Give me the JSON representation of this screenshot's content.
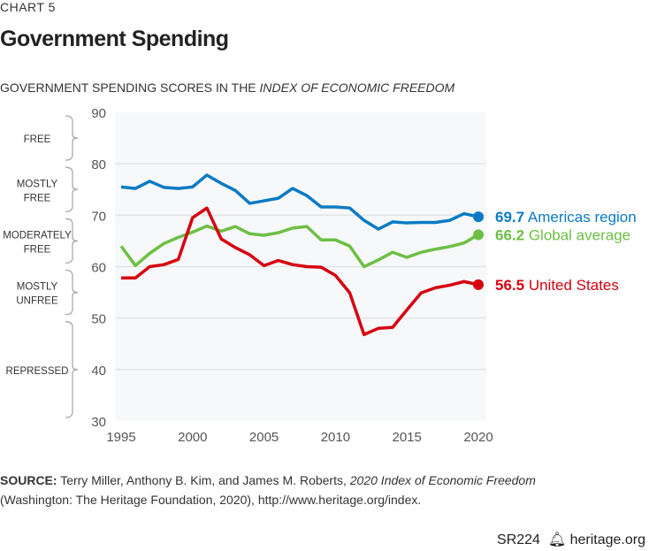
{
  "header": {
    "label": "CHART 5",
    "title": "Government Spending",
    "subtitle_prefix": "GOVERNMENT SPENDING SCORES IN THE ",
    "subtitle_italic": "INDEX OF ECONOMIC FREEDOM"
  },
  "source": {
    "label": "SOURCE:",
    "text1": " Terry Miller, Anthony B. Kim, and James M. Roberts, ",
    "italic": "2020 Index of Economic Freedom",
    "text2": "(Washington: The Heritage Foundation, 2020), http://www.heritage.org/index."
  },
  "footer": {
    "code": "SR224",
    "icon": "bell-icon",
    "site": "heritage.org"
  },
  "chart_data": {
    "type": "line",
    "title": "Government Spending",
    "xlabel": "",
    "ylabel": "",
    "xlim": [
      1995,
      2020
    ],
    "ylim": [
      30,
      90
    ],
    "xticks": [
      1995,
      2000,
      2005,
      2010,
      2015,
      2020
    ],
    "yticks": [
      30,
      40,
      50,
      60,
      70,
      80,
      90
    ],
    "grid": true,
    "bands": [
      {
        "label": [
          "FREE"
        ],
        "range": [
          80,
          90
        ]
      },
      {
        "label": [
          "MOSTLY",
          "FREE"
        ],
        "range": [
          70,
          80
        ]
      },
      {
        "label": [
          "MODERATELY",
          "FREE"
        ],
        "range": [
          60,
          70
        ]
      },
      {
        "label": [
          "MOSTLY",
          "UNFREE"
        ],
        "range": [
          50,
          60
        ]
      },
      {
        "label": [
          "REPRESSED"
        ],
        "range": [
          30,
          50
        ]
      }
    ],
    "x": [
      1995,
      1996,
      1997,
      1998,
      1999,
      2000,
      2001,
      2002,
      2003,
      2004,
      2005,
      2006,
      2007,
      2008,
      2009,
      2010,
      2011,
      2012,
      2013,
      2014,
      2015,
      2016,
      2017,
      2018,
      2019,
      2020
    ],
    "series": [
      {
        "name": "Americas region",
        "end_label": "69.7",
        "color": "#0a7ac4",
        "values": [
          75.5,
          75.2,
          76.6,
          75.4,
          75.2,
          75.5,
          77.8,
          76.2,
          74.8,
          72.3,
          72.8,
          73.3,
          75.2,
          73.8,
          71.6,
          71.6,
          71.4,
          69.0,
          67.3,
          68.7,
          68.5,
          68.6,
          68.6,
          69.0,
          70.3,
          69.7
        ]
      },
      {
        "name": "Global average",
        "end_label": "66.2",
        "color": "#6cbf44",
        "values": [
          64.0,
          60.2,
          62.6,
          64.5,
          65.7,
          66.7,
          67.9,
          66.9,
          67.8,
          66.4,
          66.1,
          66.6,
          67.5,
          67.8,
          65.2,
          65.2,
          64.0,
          60.0,
          61.3,
          62.8,
          61.8,
          62.8,
          63.4,
          63.9,
          64.6,
          66.2
        ]
      },
      {
        "name": "United States",
        "end_label": "56.5",
        "color": "#d7000f",
        "values": [
          57.8,
          57.8,
          60.0,
          60.4,
          61.4,
          69.5,
          71.4,
          65.4,
          63.7,
          62.3,
          60.2,
          61.2,
          60.4,
          60.0,
          59.9,
          58.3,
          54.9,
          46.8,
          48.0,
          48.2,
          51.6,
          54.9,
          55.9,
          56.4,
          57.1,
          56.5
        ]
      }
    ]
  }
}
